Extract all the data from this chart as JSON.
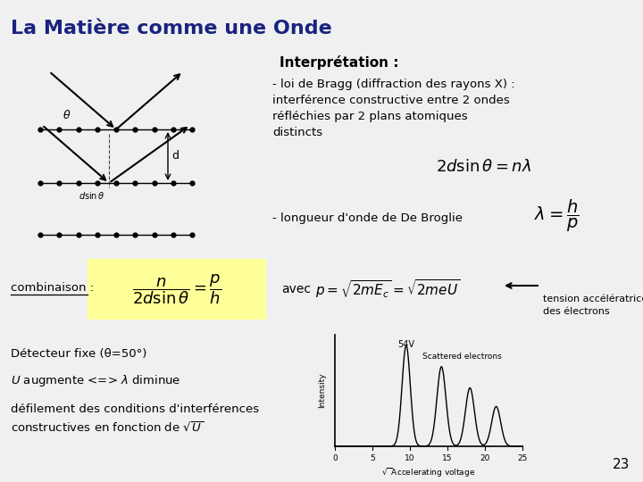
{
  "title": "La Matière comme une Onde",
  "title_color": "#1a237e",
  "bg_color": "#f0f0f0",
  "interpretation_label": "Interprétation :",
  "bragg_text": "- loi de Bragg (diffraction des rayons X) :\ninterférence constructive entre 2 ondes\nréfléchies par 2 plans atomiques\ndistincts",
  "bragg_formula": "$2d\\sin\\theta = n\\lambda$",
  "broglie_text": "- longueur d'onde de De Broglie",
  "broglie_formula": "$\\lambda = \\dfrac{h}{p}$",
  "combination_label": "combinaison :",
  "combination_formula": "$\\dfrac{n}{2d\\sin\\theta} = \\dfrac{p}{h}$",
  "avec_label": "avec",
  "avec_formula": "$p = \\sqrt{2mE_c} = \\sqrt{2meU}$",
  "tension_text": "tension accélératrice\ndes électrons",
  "detecteur_text": "Détecteur fixe (θ=50°)",
  "augmente_text": "$\\mathit{U}$ augmente <=> $\\lambda$ diminue",
  "defilement_text": "défilement des conditions d'interférences\nconstructives en fonction de $\\sqrt{U}$",
  "page_number": "23",
  "yellow_bg": "#ffff99"
}
